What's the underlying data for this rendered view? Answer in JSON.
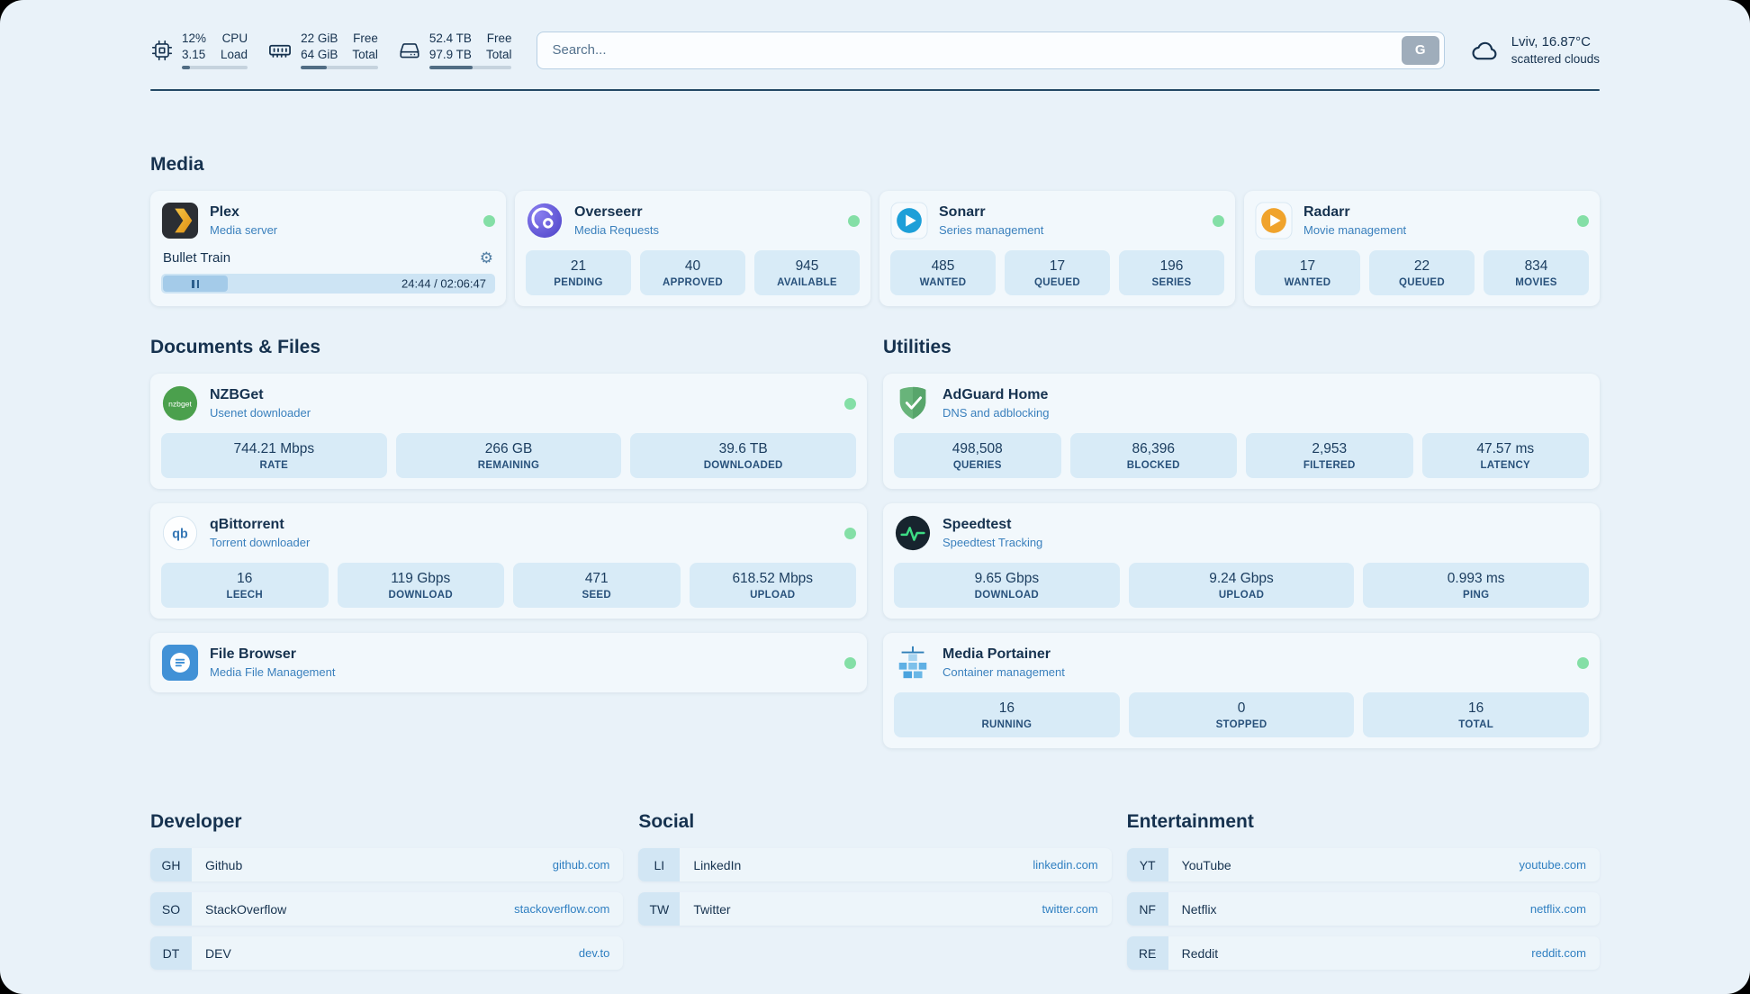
{
  "theme": {
    "page_bg": "#e9f2f9",
    "card_bg": "#f2f8fc",
    "stat_bg": "#d8ebf7",
    "text_primary": "#16324f",
    "accent_blue": "#2f7fc1",
    "status_green": "#84dfa6"
  },
  "header": {
    "cpu": {
      "value1": "12%",
      "value2": "3.15",
      "label1": "CPU",
      "label2": "Load",
      "percent": 12
    },
    "memory": {
      "value1": "22 GiB",
      "value2": "64 GiB",
      "label1": "Free",
      "label2": "Total",
      "percent": 34
    },
    "disk": {
      "value1": "52.4 TB",
      "value2": "97.9 TB",
      "label1": "Free",
      "label2": "Total",
      "percent": 53
    },
    "search": {
      "placeholder": "Search...",
      "button_label": "G"
    },
    "weather": {
      "location": "Lviv, 16.87°C",
      "condition": "scattered clouds"
    }
  },
  "sections": {
    "media": "Media",
    "documents": "Documents & Files",
    "utilities": "Utilities",
    "developer": "Developer",
    "social": "Social",
    "entertainment": "Entertainment"
  },
  "services": {
    "plex": {
      "name": "Plex",
      "desc": "Media server",
      "now_playing": "Bullet Train",
      "time": "24:44 / 02:06:47",
      "progress_percent": 19.5
    },
    "overseerr": {
      "name": "Overseerr",
      "desc": "Media Requests",
      "stats": [
        {
          "value": "21",
          "label": "PENDING"
        },
        {
          "value": "40",
          "label": "APPROVED"
        },
        {
          "value": "945",
          "label": "AVAILABLE"
        }
      ]
    },
    "sonarr": {
      "name": "Sonarr",
      "desc": "Series management",
      "stats": [
        {
          "value": "485",
          "label": "WANTED"
        },
        {
          "value": "17",
          "label": "QUEUED"
        },
        {
          "value": "196",
          "label": "SERIES"
        }
      ]
    },
    "radarr": {
      "name": "Radarr",
      "desc": "Movie management",
      "stats": [
        {
          "value": "17",
          "label": "WANTED"
        },
        {
          "value": "22",
          "label": "QUEUED"
        },
        {
          "value": "834",
          "label": "MOVIES"
        }
      ]
    },
    "nzbget": {
      "name": "NZBGet",
      "desc": "Usenet downloader",
      "icon_text": "nzbget",
      "stats": [
        {
          "value": "744.21 Mbps",
          "label": "RATE"
        },
        {
          "value": "266 GB",
          "label": "REMAINING"
        },
        {
          "value": "39.6 TB",
          "label": "DOWNLOADED"
        }
      ]
    },
    "qbittorrent": {
      "name": "qBittorrent",
      "desc": "Torrent downloader",
      "icon_text": "qb",
      "stats": [
        {
          "value": "16",
          "label": "LEECH"
        },
        {
          "value": "119 Gbps",
          "label": "DOWNLOAD"
        },
        {
          "value": "471",
          "label": "SEED"
        },
        {
          "value": "618.52 Mbps",
          "label": "UPLOAD"
        }
      ]
    },
    "filebrowser": {
      "name": "File Browser",
      "desc": "Media File Management"
    },
    "adguard": {
      "name": "AdGuard Home",
      "desc": "DNS and adblocking",
      "stats": [
        {
          "value": "498,508",
          "label": "QUERIES"
        },
        {
          "value": "86,396",
          "label": "BLOCKED"
        },
        {
          "value": "2,953",
          "label": "FILTERED"
        },
        {
          "value": "47.57 ms",
          "label": "LATENCY"
        }
      ]
    },
    "speedtest": {
      "name": "Speedtest",
      "desc": "Speedtest Tracking",
      "stats": [
        {
          "value": "9.65 Gbps",
          "label": "DOWNLOAD"
        },
        {
          "value": "9.24 Gbps",
          "label": "UPLOAD"
        },
        {
          "value": "0.993 ms",
          "label": "PING"
        }
      ]
    },
    "portainer": {
      "name": "Media Portainer",
      "desc": "Container management",
      "stats": [
        {
          "value": "16",
          "label": "RUNNING"
        },
        {
          "value": "0",
          "label": "STOPPED"
        },
        {
          "value": "16",
          "label": "TOTAL"
        }
      ]
    }
  },
  "bookmarks": {
    "developer": [
      {
        "abbr": "GH",
        "name": "Github",
        "link": "github.com"
      },
      {
        "abbr": "SO",
        "name": "StackOverflow",
        "link": "stackoverflow.com"
      },
      {
        "abbr": "DT",
        "name": "DEV",
        "link": "dev.to"
      }
    ],
    "social": [
      {
        "abbr": "LI",
        "name": "LinkedIn",
        "link": "linkedin.com"
      },
      {
        "abbr": "TW",
        "name": "Twitter",
        "link": "twitter.com"
      }
    ],
    "entertainment": [
      {
        "abbr": "YT",
        "name": "YouTube",
        "link": "youtube.com"
      },
      {
        "abbr": "NF",
        "name": "Netflix",
        "link": "netflix.com"
      },
      {
        "abbr": "RE",
        "name": "Reddit",
        "link": "reddit.com"
      }
    ]
  }
}
